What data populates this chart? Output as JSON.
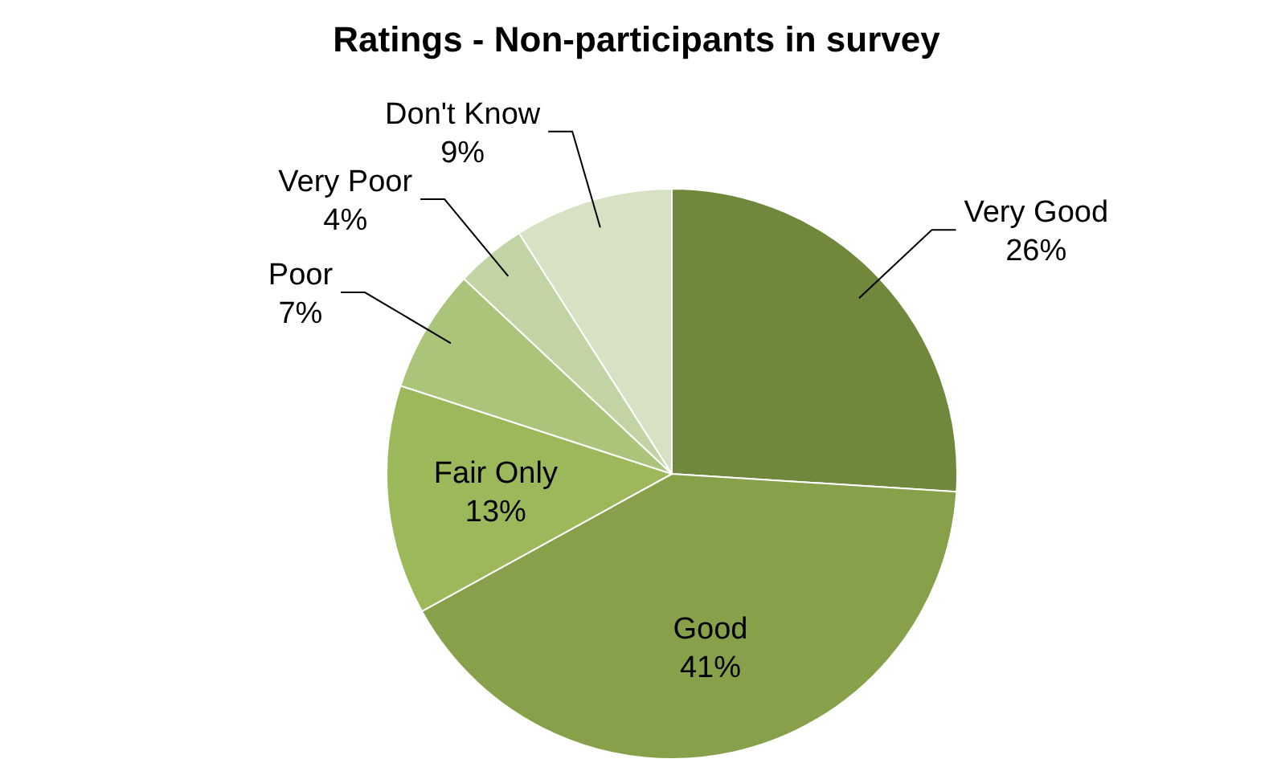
{
  "chart_data": {
    "type": "pie",
    "title": "Ratings - Non-participants in survey",
    "categories": [
      "Very Good",
      "Good",
      "Fair Only",
      "Poor",
      "Very Poor",
      "Don't Know"
    ],
    "values": [
      26,
      41,
      13,
      7,
      4,
      9
    ],
    "value_labels": [
      "26%",
      "41%",
      "13%",
      "7%",
      "4%",
      "9%"
    ],
    "colors": [
      "#70883c",
      "#87a04a",
      "#9bb85a",
      "#aac47a",
      "#c2d4a4",
      "#d7e2c4"
    ],
    "legend": false
  }
}
